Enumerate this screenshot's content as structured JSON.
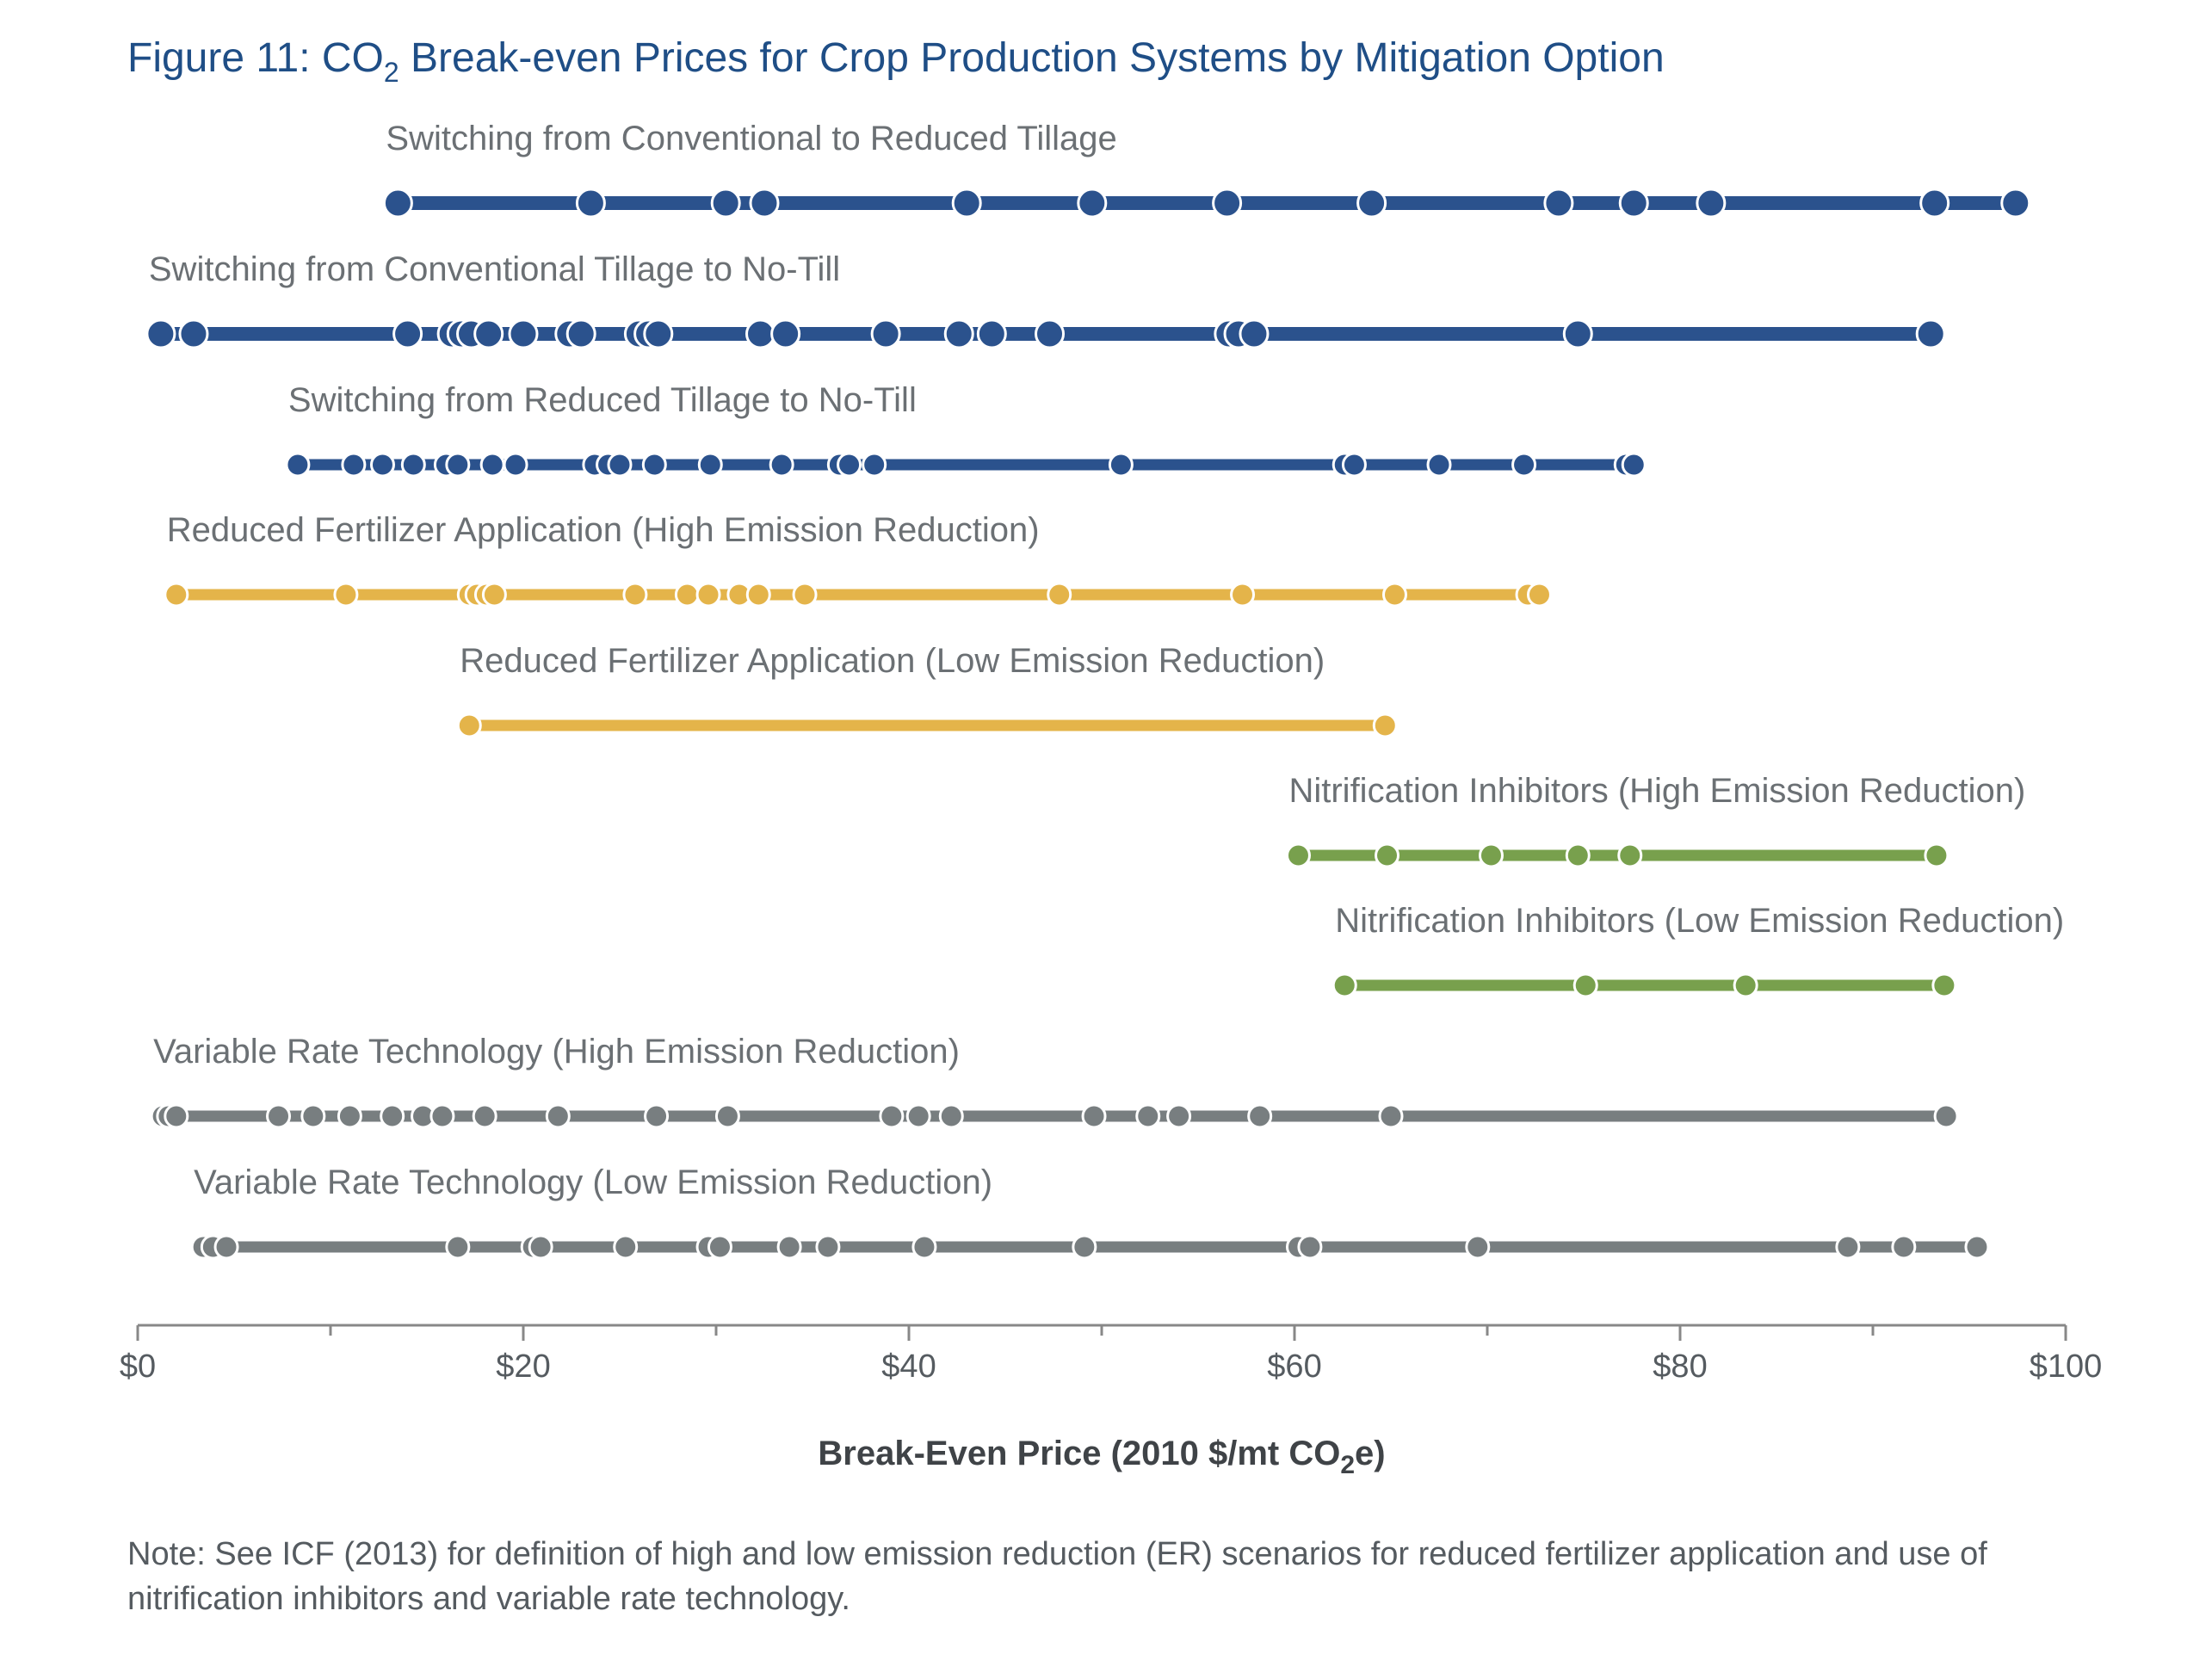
{
  "figure": {
    "title_main": "Figure 11: CO",
    "title_sub": "2",
    "title_rest": " Break-even Prices for Crop Production Systems by Mitigation Option",
    "note": "Note: See ICF (2013) for definition of high and low emission reduction (ER) scenarios for reduced fertilizer application and use of nitrification inhibitors and variable rate technology."
  },
  "colors": {
    "tillage": "#2b528d",
    "fertilizer": "#e4b44a",
    "inhibitor": "#78a04d",
    "vrt": "#787e80",
    "axis": "#888888"
  },
  "chart_data": {
    "type": "scatter",
    "xlabel_main": "Break-Even Price (2010 $/mt CO",
    "xlabel_sub": "2",
    "xlabel_end": "e)",
    "xlim": [
      0,
      100
    ],
    "xticks": [
      0,
      20,
      40,
      60,
      80,
      100
    ],
    "xtick_labels": [
      "$0",
      "$20",
      "$40",
      "$60",
      "$80",
      "$100"
    ],
    "series": [
      {
        "name": "Switching from Conventional to Reduced Tillage",
        "group": "tillage",
        "size": "large",
        "values": [
          13.5,
          23.5,
          30.5,
          32.5,
          43,
          49.5,
          56.5,
          64,
          73.7,
          77.6,
          81.6,
          93.2,
          97.4
        ]
      },
      {
        "name": "Switching from Conventional Tillage to No-Till",
        "group": "tillage",
        "size": "large",
        "values": [
          1.2,
          2.9,
          14,
          16.3,
          16.8,
          17.3,
          18.2,
          20,
          22.4,
          23,
          26,
          26.5,
          27,
          32.3,
          33.6,
          38.8,
          42.6,
          44.3,
          47.3,
          56.6,
          57.1,
          57.9,
          74.7,
          93
        ]
      },
      {
        "name": "Switching from Reduced Tillage to No-Till",
        "group": "tillage",
        "size": "small",
        "values": [
          8.3,
          11.2,
          12.7,
          14.3,
          16,
          16.6,
          18.4,
          19.6,
          23.7,
          24.4,
          25,
          26.8,
          29.7,
          33.4,
          36.4,
          36.9,
          38.2,
          51,
          62.6,
          63.1,
          67.5,
          71.9,
          77.2,
          77.6
        ]
      },
      {
        "name": "Reduced Fertilizer Application (High Emission Reduction)",
        "group": "fertilizer",
        "size": "small",
        "values": [
          2,
          10.8,
          17.2,
          17.6,
          18.1,
          18.5,
          25.8,
          28.5,
          29.6,
          31.2,
          32.2,
          34.6,
          47.8,
          57.3,
          65.2,
          72.1,
          72.7
        ]
      },
      {
        "name": "Reduced Fertilizer Application (Low Emission Reduction)",
        "group": "fertilizer",
        "size": "small",
        "values": [
          17.2,
          64.7
        ]
      },
      {
        "name": "Nitrification Inhibitors (High Emission Reduction)",
        "group": "inhibitor",
        "size": "small",
        "values": [
          60.2,
          64.8,
          70.2,
          74.7,
          77.4,
          93.3
        ]
      },
      {
        "name": "Nitrification Inhibitors (Low Emission Reduction)",
        "group": "inhibitor",
        "size": "small",
        "values": [
          62.6,
          75.1,
          83.4,
          93.7
        ]
      },
      {
        "name": "Variable Rate Technology (High Emission Reduction)",
        "group": "vrt",
        "size": "small",
        "values": [
          1.3,
          1.6,
          2,
          7.3,
          9.1,
          11,
          13.2,
          14.8,
          15.8,
          18,
          21.8,
          26.9,
          30.6,
          39.1,
          40.5,
          42.2,
          49.6,
          52.4,
          54,
          58.2,
          65,
          93.8
        ]
      },
      {
        "name": "Variable Rate Technology (Low Emission Reduction)",
        "group": "vrt",
        "size": "small",
        "values": [
          3.4,
          3.9,
          4.6,
          16.6,
          20.5,
          20.9,
          25.3,
          29.6,
          30.2,
          33.8,
          35.8,
          40.8,
          49.1,
          60.2,
          60.8,
          69.5,
          88.7,
          91.6,
          95.4
        ]
      }
    ]
  }
}
